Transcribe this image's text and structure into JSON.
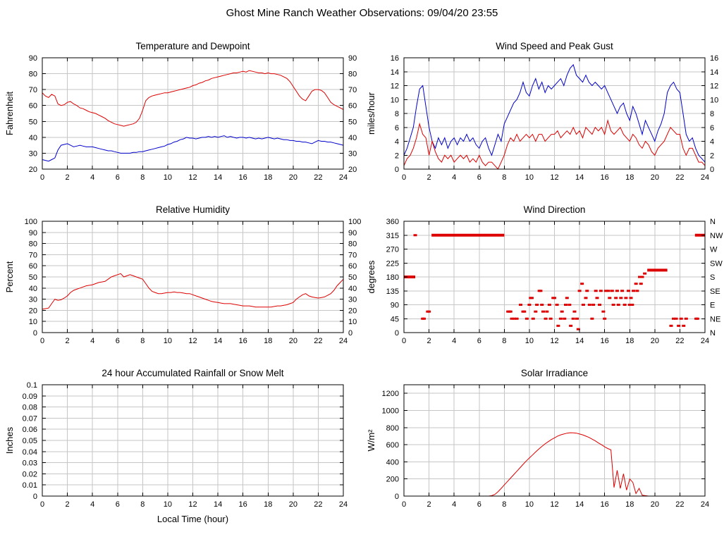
{
  "page": {
    "title": "Ghost Mine Ranch Weather Observations: 09/04/20 23:55"
  },
  "colors": {
    "red": "#dd0000",
    "blue": "#0000cc",
    "grid": "#c6c6c6",
    "frame": "#000000",
    "text": "#000000"
  },
  "chart_data": [
    {
      "id": "temperature",
      "type": "line",
      "title": "Temperature and Dewpoint",
      "ylabel": "Fahrenheit",
      "xlim": [
        0,
        24
      ],
      "ylim": [
        20,
        90
      ],
      "xticks": [
        0,
        2,
        4,
        6,
        8,
        10,
        12,
        14,
        16,
        18,
        20,
        22,
        24
      ],
      "yticks": [
        20,
        30,
        40,
        50,
        60,
        70,
        80,
        90
      ],
      "right_labels": "same",
      "series": [
        {
          "name": "Temperature",
          "color": "red",
          "x0": 0,
          "dx": 0.25,
          "y": [
            68,
            66,
            65,
            67,
            66,
            61,
            60,
            60.5,
            62,
            62.5,
            61,
            60,
            58.5,
            58,
            57,
            56,
            55.5,
            55,
            54,
            53,
            52,
            50.5,
            49.5,
            48.5,
            48,
            47.5,
            47,
            47.5,
            48,
            48.5,
            49.5,
            52,
            57,
            63,
            65,
            66,
            66.5,
            67,
            67.5,
            68,
            68,
            68.5,
            69,
            69.5,
            70,
            70.5,
            71,
            71.5,
            72.5,
            73,
            74,
            74.5,
            75.5,
            76,
            77,
            77.5,
            78,
            78.5,
            79,
            79.5,
            80,
            80.5,
            80.5,
            81,
            81.5,
            81,
            82,
            81.5,
            81,
            80.5,
            80.5,
            80,
            80.5,
            80,
            80,
            79.5,
            79,
            78,
            77,
            75,
            72,
            69,
            66,
            64,
            63,
            66,
            69,
            70,
            70,
            69.5,
            68,
            65,
            62,
            60.5,
            59.5,
            58.5,
            57.5
          ]
        },
        {
          "name": "Dewpoint",
          "color": "blue",
          "x0": 0,
          "dx": 0.25,
          "y": [
            26,
            25.5,
            25,
            26,
            27,
            32,
            35,
            35.5,
            36,
            35,
            34,
            34.5,
            35,
            34.5,
            34,
            34,
            34,
            33.5,
            33,
            32.5,
            32,
            31.5,
            31.5,
            31,
            30.5,
            30,
            30,
            30,
            30,
            30.5,
            30.5,
            31,
            31,
            31.5,
            32,
            32.5,
            33,
            33.5,
            34,
            34.5,
            35.5,
            36,
            37,
            37.5,
            38.5,
            39,
            40,
            39.5,
            39.5,
            39,
            39.5,
            40,
            40,
            40.5,
            40,
            40.5,
            40,
            40.5,
            41,
            40,
            40.5,
            40,
            39.5,
            40,
            40,
            39.5,
            40,
            39.5,
            39,
            39.5,
            39,
            39.5,
            40,
            39.5,
            39,
            39.5,
            39,
            38.5,
            38.5,
            38,
            38,
            37.5,
            37.5,
            37,
            37,
            36.5,
            36,
            37,
            38,
            37.5,
            37.5,
            37,
            37,
            36.5,
            36,
            35.5,
            35
          ]
        }
      ]
    },
    {
      "id": "wind",
      "type": "line",
      "title": "Wind Speed and Peak Gust",
      "ylabel": "miles/hour",
      "xlim": [
        0,
        24
      ],
      "ylim": [
        0,
        16
      ],
      "xticks": [
        0,
        2,
        4,
        6,
        8,
        10,
        12,
        14,
        16,
        18,
        20,
        22,
        24
      ],
      "yticks": [
        0,
        2,
        4,
        6,
        8,
        10,
        12,
        14,
        16
      ],
      "right_labels": "same",
      "series": [
        {
          "name": "Peak Gust",
          "color": "blue",
          "x0": 0,
          "dx": 0.25,
          "y": [
            2,
            3,
            4.5,
            6,
            9,
            11.5,
            12,
            9,
            6,
            4,
            3,
            4.5,
            3.5,
            4.5,
            3,
            4,
            4.5,
            3.5,
            4.5,
            4,
            5,
            4,
            4.5,
            3.5,
            3,
            4,
            4.5,
            3,
            2,
            3.5,
            5,
            4,
            6.5,
            7.5,
            8.5,
            9.5,
            10,
            11,
            12.5,
            11,
            10.5,
            12,
            13,
            11.5,
            12.5,
            11,
            12,
            11.5,
            12,
            12.5,
            13,
            12,
            13.5,
            14.5,
            15,
            13.5,
            13,
            12.5,
            13.5,
            12.5,
            12,
            12.5,
            12,
            11.5,
            12,
            11,
            10,
            9,
            8,
            9,
            9.5,
            8,
            7,
            9,
            8,
            6.5,
            5,
            7,
            6,
            5,
            4,
            5.5,
            6.5,
            8,
            11,
            12,
            12.5,
            11.5,
            11,
            8,
            5,
            4,
            4.5,
            3,
            2,
            1.5,
            1
          ]
        },
        {
          "name": "Wind Speed",
          "color": "red",
          "x0": 0,
          "dx": 0.25,
          "y": [
            0.5,
            1.5,
            2,
            3,
            4.5,
            6.5,
            5,
            4.5,
            2,
            4,
            2.5,
            1.5,
            1,
            2,
            1.5,
            2,
            1,
            1.5,
            2,
            1.5,
            2,
            1,
            1.5,
            1,
            2,
            1,
            0.5,
            1,
            1,
            0.5,
            0,
            1,
            2,
            3.5,
            4.5,
            4,
            5,
            4,
            4.5,
            5,
            4.5,
            5,
            4,
            5,
            5,
            4,
            4.5,
            5,
            5,
            5.5,
            4.5,
            5,
            5.5,
            5,
            6,
            5,
            5.5,
            4.5,
            6,
            5.5,
            5,
            6,
            5.5,
            6,
            5,
            7,
            5.5,
            5,
            5.5,
            6,
            5,
            4.5,
            4,
            5,
            4.5,
            3.5,
            3,
            4,
            3.5,
            2.5,
            2,
            3,
            3.5,
            4,
            5,
            6,
            5.5,
            5,
            5,
            3,
            2,
            3,
            3,
            2,
            1,
            1,
            0.5
          ]
        }
      ]
    },
    {
      "id": "humidity",
      "type": "line",
      "title": "Relative Humidity",
      "ylabel": "Percent",
      "xlim": [
        0,
        24
      ],
      "ylim": [
        0,
        100
      ],
      "xticks": [
        0,
        2,
        4,
        6,
        8,
        10,
        12,
        14,
        16,
        18,
        20,
        22,
        24
      ],
      "yticks": [
        0,
        10,
        20,
        30,
        40,
        50,
        60,
        70,
        80,
        90,
        100
      ],
      "right_labels": "same",
      "series": [
        {
          "name": "Relative Humidity",
          "color": "red",
          "x0": 0,
          "dx": 0.25,
          "y": [
            21,
            21.5,
            22,
            26,
            30,
            29,
            29.5,
            31,
            33,
            36,
            38,
            39,
            40,
            41,
            42,
            42.5,
            43,
            44,
            45,
            45.5,
            46,
            48,
            50,
            51,
            52,
            53,
            50,
            51,
            52,
            51,
            50,
            49,
            48,
            44,
            40,
            37,
            36,
            35,
            35,
            35.5,
            36,
            36,
            36.5,
            36,
            36,
            35.5,
            35,
            35,
            34,
            33,
            32,
            31,
            30,
            29,
            28,
            27.5,
            27,
            26.5,
            26,
            26,
            26,
            25.5,
            25,
            24.5,
            24,
            24,
            24,
            23.5,
            23,
            23,
            23,
            23,
            23,
            23,
            23.5,
            24,
            24,
            24.5,
            25,
            26,
            27,
            30,
            32,
            34,
            35,
            33,
            32,
            31.5,
            31,
            31.5,
            32,
            33.5,
            35,
            38,
            42,
            45,
            48
          ]
        }
      ]
    },
    {
      "id": "winddir",
      "type": "scatter",
      "title": "Wind Direction",
      "ylabel": "degrees",
      "xlim": [
        0,
        24
      ],
      "ylim": [
        0,
        360
      ],
      "xticks": [
        0,
        2,
        4,
        6,
        8,
        10,
        12,
        14,
        16,
        18,
        20,
        22,
        24
      ],
      "yticks": [
        0,
        45,
        90,
        135,
        180,
        225,
        270,
        315,
        360
      ],
      "right_labels": [
        "N",
        "NE",
        "E",
        "SE",
        "S",
        "SW",
        "W",
        "NW",
        "N"
      ],
      "segments": [
        [
          0,
          0.9,
          180
        ],
        [
          2.2,
          8.0,
          315
        ],
        [
          19.4,
          21.0,
          202
        ],
        [
          23.2,
          24,
          315
        ]
      ],
      "points": [
        [
          0.9,
          315
        ],
        [
          1.5,
          45
        ],
        [
          1.6,
          45
        ],
        [
          1.9,
          68
        ],
        [
          2.0,
          68
        ],
        [
          8.3,
          68
        ],
        [
          8.4,
          68
        ],
        [
          8.5,
          68
        ],
        [
          8.6,
          45
        ],
        [
          8.8,
          45
        ],
        [
          9.0,
          45
        ],
        [
          9.3,
          90
        ],
        [
          9.5,
          68
        ],
        [
          9.6,
          68
        ],
        [
          9.8,
          45
        ],
        [
          10.0,
          90
        ],
        [
          10.1,
          112
        ],
        [
          10.2,
          112
        ],
        [
          10.3,
          45
        ],
        [
          10.5,
          68
        ],
        [
          10.6,
          90
        ],
        [
          10.8,
          135
        ],
        [
          10.9,
          135
        ],
        [
          11.0,
          90
        ],
        [
          11.1,
          68
        ],
        [
          11.3,
          45
        ],
        [
          11.4,
          68
        ],
        [
          11.6,
          90
        ],
        [
          11.7,
          45
        ],
        [
          11.9,
          112
        ],
        [
          12.0,
          112
        ],
        [
          12.2,
          90
        ],
        [
          12.3,
          22
        ],
        [
          12.5,
          45
        ],
        [
          12.6,
          68
        ],
        [
          12.8,
          45
        ],
        [
          12.9,
          90
        ],
        [
          13.0,
          112
        ],
        [
          13.2,
          90
        ],
        [
          13.3,
          22
        ],
        [
          13.5,
          45
        ],
        [
          13.6,
          68
        ],
        [
          13.8,
          45
        ],
        [
          13.9,
          11
        ],
        [
          14.0,
          135
        ],
        [
          14.2,
          158
        ],
        [
          14.3,
          90
        ],
        [
          14.5,
          112
        ],
        [
          14.6,
          135
        ],
        [
          14.8,
          90
        ],
        [
          15.0,
          45
        ],
        [
          15.1,
          90
        ],
        [
          15.3,
          135
        ],
        [
          15.4,
          112
        ],
        [
          15.6,
          90
        ],
        [
          15.7,
          135
        ],
        [
          15.9,
          68
        ],
        [
          16.0,
          45
        ],
        [
          16.1,
          135
        ],
        [
          16.3,
          135
        ],
        [
          16.4,
          112
        ],
        [
          16.6,
          135
        ],
        [
          16.7,
          90
        ],
        [
          16.9,
          112
        ],
        [
          17.0,
          135
        ],
        [
          17.1,
          90
        ],
        [
          17.3,
          112
        ],
        [
          17.4,
          135
        ],
        [
          17.6,
          90
        ],
        [
          17.7,
          112
        ],
        [
          17.9,
          135
        ],
        [
          18.0,
          90
        ],
        [
          18.1,
          112
        ],
        [
          18.2,
          90
        ],
        [
          18.3,
          135
        ],
        [
          18.5,
          158
        ],
        [
          18.6,
          135
        ],
        [
          18.8,
          180
        ],
        [
          18.9,
          158
        ],
        [
          19.0,
          180
        ],
        [
          19.2,
          191
        ],
        [
          21.3,
          22
        ],
        [
          21.5,
          45
        ],
        [
          21.7,
          45
        ],
        [
          21.9,
          22
        ],
        [
          22.1,
          45
        ],
        [
          22.3,
          22
        ],
        [
          22.5,
          45
        ],
        [
          23.3,
          45
        ],
        [
          23.4,
          45
        ]
      ]
    },
    {
      "id": "rain",
      "type": "line",
      "title": "24 hour Accumulated Rainfall or Snow Melt",
      "ylabel": "Inches",
      "xlabel": "Local Time (hour)",
      "xlim": [
        0,
        24
      ],
      "ylim": [
        0,
        0.1
      ],
      "xticks": [
        0,
        2,
        4,
        6,
        8,
        10,
        12,
        14,
        16,
        18,
        20,
        22,
        24
      ],
      "yticks": [
        0,
        0.01,
        0.02,
        0.03,
        0.04,
        0.05,
        0.06,
        0.07,
        0.08,
        0.09,
        0.1
      ],
      "ytick_labels": [
        "0",
        "0.01",
        "0.02",
        "0.03",
        "0.04",
        "0.05",
        "0.06",
        "0.07",
        "0.08",
        "0.09",
        "0.1"
      ],
      "series": [
        {
          "name": "Accumulated Rainfall",
          "color": "red",
          "points": [
            [
              0,
              0
            ],
            [
              24,
              0
            ]
          ]
        }
      ]
    },
    {
      "id": "solar",
      "type": "line",
      "title": "Solar Irradiance",
      "ylabel": "W/m²",
      "xlim": [
        0,
        24
      ],
      "ylim": [
        0,
        1300
      ],
      "xticks": [
        0,
        2,
        4,
        6,
        8,
        10,
        12,
        14,
        16,
        18,
        20,
        22,
        24
      ],
      "yticks": [
        0,
        200,
        400,
        600,
        800,
        1000,
        1200
      ],
      "series": [
        {
          "name": "Solar Irradiance",
          "color": "red",
          "x0": 0,
          "dx": 0.25,
          "y": [
            0,
            0,
            0,
            0,
            0,
            0,
            0,
            0,
            0,
            0,
            0,
            0,
            0,
            0,
            0,
            0,
            0,
            0,
            0,
            0,
            0,
            0,
            0,
            0,
            0,
            0,
            0,
            0,
            5,
            20,
            50,
            90,
            130,
            170,
            210,
            250,
            290,
            330,
            370,
            410,
            445,
            480,
            515,
            550,
            580,
            610,
            635,
            660,
            680,
            700,
            715,
            725,
            735,
            740,
            738,
            735,
            725,
            715,
            700,
            685,
            665,
            645,
            620,
            600,
            575,
            555,
            540,
            100,
            300,
            90,
            260,
            70,
            200,
            160,
            30,
            90,
            10,
            5,
            0,
            0,
            0,
            0,
            0,
            0,
            0,
            0,
            0,
            0,
            0,
            0,
            0,
            0,
            0,
            0,
            0,
            0,
            0
          ]
        }
      ]
    }
  ]
}
